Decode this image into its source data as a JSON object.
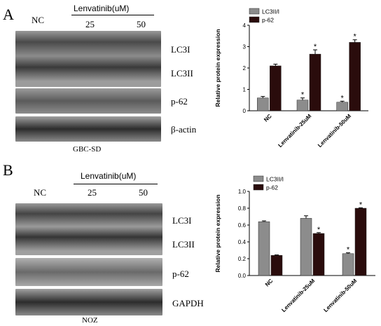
{
  "colors": {
    "lc3": "#8c8c8c",
    "p62": "#2a0c0c",
    "blot_bg": "#b8b8b8",
    "blot_band": "#3a3a3a"
  },
  "panels": [
    {
      "letter": "A",
      "treatment_label": "Lenvatinib(uM)",
      "lanes": [
        "NC",
        "25",
        "50"
      ],
      "band_labels": [
        "LC3I",
        "LC3II",
        "p-62",
        "β-actin"
      ],
      "cell_line": "GBC-SD"
    },
    {
      "letter": "B",
      "treatment_label": "Lenvatinib(uM)",
      "lanes": [
        "NC",
        "25",
        "50"
      ],
      "band_labels": [
        "LC3I",
        "LC3II",
        "p-62",
        "GAPDH"
      ],
      "cell_line": "NOZ"
    }
  ],
  "chart_data": [
    {
      "type": "bar",
      "title": "",
      "xlabel": "",
      "ylabel": "Relative protein expression",
      "categories": [
        "NC",
        "Lenvatinib-25uM",
        "Lenvatinib-50uM"
      ],
      "series": [
        {
          "name": "LC3II/I",
          "values": [
            0.6,
            0.5,
            0.4
          ],
          "errors": [
            0.07,
            0.1,
            0.05
          ],
          "significant": [
            false,
            true,
            true
          ]
        },
        {
          "name": "p-62",
          "values": [
            2.1,
            2.65,
            3.2
          ],
          "errors": [
            0.08,
            0.2,
            0.12
          ],
          "significant": [
            false,
            true,
            true
          ]
        }
      ],
      "ylim": [
        0,
        4
      ],
      "yticks": [
        "0",
        "1",
        "2",
        "3",
        "4"
      ],
      "legend": "top-left",
      "significance_marker": "*"
    },
    {
      "type": "bar",
      "title": "",
      "xlabel": "",
      "ylabel": "Relative protein expression",
      "categories": [
        "NC",
        "Lenvatinib-25uM",
        "Lenvatinib-50uM"
      ],
      "series": [
        {
          "name": "LC3II/I",
          "values": [
            0.64,
            0.68,
            0.26
          ],
          "errors": [
            0.01,
            0.03,
            0.01
          ],
          "significant": [
            false,
            false,
            true
          ]
        },
        {
          "name": "p-62",
          "values": [
            0.24,
            0.5,
            0.8
          ],
          "errors": [
            0.005,
            0.01,
            0.005
          ],
          "significant": [
            false,
            true,
            true
          ]
        }
      ],
      "ylim": [
        0,
        1
      ],
      "yticks": [
        "0.0",
        "0.2",
        "0.4",
        "0.6",
        "0.8",
        "1.0"
      ],
      "legend": "top-left",
      "significance_marker": "*"
    }
  ]
}
